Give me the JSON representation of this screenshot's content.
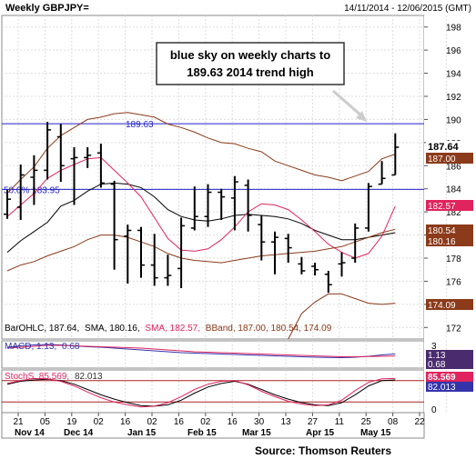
{
  "header": {
    "symbol": "Weekly GBPJPY=",
    "date_range": "14/11/2014 - 12/06/2015 (GMT)"
  },
  "annotation": {
    "line1": "blue sky on weekly charts to",
    "line2": "189.63 2014 trend high"
  },
  "footer": {
    "source": "Source: Thomson Reuters"
  },
  "chart_data": [
    {
      "type": "line",
      "title": "Weekly GBPJPY=",
      "ylim": [
        171,
        199
      ],
      "y_ticks": [
        172,
        174,
        176,
        178,
        180,
        182,
        184,
        186,
        188,
        190,
        192,
        194,
        196,
        198
      ],
      "x_tick_labels": [
        "21",
        "05",
        "19",
        "02",
        "16",
        "02",
        "16",
        "02",
        "16",
        "30",
        "13",
        "27",
        "11",
        "25",
        "08",
        "22",
        "05"
      ],
      "x_month_labels": [
        "Nov 14",
        "Dec 14",
        "Jan 15",
        "Feb 15",
        "Mar 15",
        "Apr 15",
        "May 15"
      ],
      "legend_text": [
        "BarOHLC, 187.64,",
        "SMA, 180.16,",
        "SMA, 182.57,",
        "BBand, 187.00, 180.54, 174.09"
      ],
      "hlines": [
        {
          "label": "189.63",
          "value": 189.63,
          "color": "#2222cc"
        },
        {
          "label": "50.0% 183.95",
          "value": 183.95,
          "color": "#2222cc"
        }
      ],
      "price_labels": [
        {
          "text": "187.64",
          "color": "#000000"
        },
        {
          "text": "187.00",
          "color": "#8b3a1a"
        },
        {
          "text": "182.57",
          "color": "#e0245e"
        },
        {
          "text": "180.54",
          "color": "#8b3a1a"
        },
        {
          "text": "180.16",
          "color": "#8b3a1a"
        },
        {
          "text": "174.09",
          "color": "#8b3a1a"
        }
      ],
      "ohlc": [
        {
          "o": 181.8,
          "h": 183.9,
          "l": 181.4,
          "c": 183.1
        },
        {
          "o": 182.4,
          "h": 186.1,
          "l": 181.3,
          "c": 185.2
        },
        {
          "o": 185.0,
          "h": 186.9,
          "l": 182.6,
          "c": 185.6
        },
        {
          "o": 185.6,
          "h": 189.8,
          "l": 184.8,
          "c": 189.1
        },
        {
          "o": 188.5,
          "h": 189.6,
          "l": 184.6,
          "c": 186.0
        },
        {
          "o": 186.6,
          "h": 187.6,
          "l": 182.6,
          "c": 186.7
        },
        {
          "o": 186.7,
          "h": 187.6,
          "l": 185.8,
          "c": 186.9
        },
        {
          "o": 187.1,
          "h": 187.9,
          "l": 184.1,
          "c": 184.5
        },
        {
          "o": 184.4,
          "h": 184.7,
          "l": 177.0,
          "c": 179.6
        },
        {
          "o": 179.9,
          "h": 180.9,
          "l": 175.8,
          "c": 180.4
        },
        {
          "o": 180.4,
          "h": 180.7,
          "l": 176.3,
          "c": 177.4
        },
        {
          "o": 177.4,
          "h": 180.1,
          "l": 175.6,
          "c": 176.3
        },
        {
          "o": 176.3,
          "h": 178.3,
          "l": 175.6,
          "c": 176.5
        },
        {
          "o": 177.1,
          "h": 181.5,
          "l": 175.4,
          "c": 180.8
        },
        {
          "o": 180.6,
          "h": 184.2,
          "l": 180.4,
          "c": 181.6
        },
        {
          "o": 181.6,
          "h": 184.4,
          "l": 180.7,
          "c": 183.7
        },
        {
          "o": 183.7,
          "h": 184.0,
          "l": 181.3,
          "c": 183.3
        },
        {
          "o": 183.2,
          "h": 185.1,
          "l": 180.4,
          "c": 184.6
        },
        {
          "o": 184.3,
          "h": 184.8,
          "l": 180.3,
          "c": 181.7
        },
        {
          "o": 180.9,
          "h": 181.7,
          "l": 177.8,
          "c": 179.4
        },
        {
          "o": 179.4,
          "h": 180.3,
          "l": 176.6,
          "c": 179.8
        },
        {
          "o": 179.7,
          "h": 180.1,
          "l": 177.6,
          "c": 178.9
        },
        {
          "o": 177.5,
          "h": 178.1,
          "l": 176.6,
          "c": 176.9
        },
        {
          "o": 177.3,
          "h": 177.6,
          "l": 176.5,
          "c": 177.0
        },
        {
          "o": 176.6,
          "h": 176.9,
          "l": 175.0,
          "c": 175.7
        },
        {
          "o": 177.5,
          "h": 178.5,
          "l": 176.4,
          "c": 177.6
        },
        {
          "o": 178.0,
          "h": 181.0,
          "l": 177.6,
          "c": 180.6
        },
        {
          "o": 180.6,
          "h": 184.5,
          "l": 180.3,
          "c": 184.2
        },
        {
          "o": 184.4,
          "h": 186.4,
          "l": 184.4,
          "c": 184.9
        },
        {
          "o": 185.2,
          "h": 188.8,
          "l": 185.2,
          "c": 187.6
        }
      ],
      "series": [
        {
          "color": "#000000",
          "values": [
            178.5,
            179.5,
            180.3,
            181.1,
            182.5,
            183.0,
            183.8,
            184.4,
            184.5,
            184.4,
            184.1,
            183.3,
            182.2,
            181.6,
            181.3,
            181.2,
            181.4,
            181.7,
            181.8,
            181.7,
            181.6,
            181.4,
            181.0,
            180.4,
            180.0,
            179.6,
            179.6,
            179.8,
            180.0,
            180.2
          ]
        },
        {
          "color": "#e0245e",
          "values": [
            181.6,
            182.6,
            183.6,
            184.9,
            185.6,
            186.1,
            186.6,
            186.7,
            185.6,
            184.5,
            183.3,
            181.5,
            179.7,
            178.7,
            178.6,
            178.8,
            179.6,
            180.7,
            182.0,
            182.7,
            182.6,
            182.2,
            181.3,
            180.3,
            179.2,
            178.5,
            178.0,
            178.4,
            179.9,
            182.5
          ]
        },
        {
          "color": "#8b3a1a",
          "values": [
            183.6,
            184.8,
            185.9,
            187.5,
            188.6,
            189.3,
            190.0,
            190.2,
            190.5,
            190.6,
            190.4,
            190.2,
            189.6,
            189.3,
            188.9,
            188.4,
            188.0,
            187.9,
            187.5,
            187.2,
            186.4,
            186.0,
            185.6,
            185.2,
            185.0,
            184.7,
            185.1,
            185.5,
            186.6,
            187.0
          ]
        },
        {
          "color": "#8b3a1a",
          "values": [
            176.9,
            177.4,
            177.7,
            178.2,
            178.6,
            179.0,
            179.6,
            180.0,
            180.0,
            179.8,
            179.4,
            179.0,
            178.4,
            178.0,
            177.8,
            177.7,
            177.6,
            177.8,
            178.0,
            178.2,
            178.3,
            178.4,
            178.5,
            178.6,
            178.8,
            179.0,
            179.4,
            179.8,
            180.2,
            180.5
          ]
        },
        {
          "color": "#8b3a1a",
          "values": [
            170.0,
            170.0,
            170.0,
            170.0,
            170.0,
            170.0,
            170.0,
            170.0,
            170.0,
            170.0,
            170.0,
            170.0,
            170.0,
            170.0,
            170.0,
            170.0,
            170.0,
            170.0,
            170.0,
            170.0,
            170.0,
            171.0,
            173.2,
            174.2,
            174.9,
            174.9,
            174.5,
            174.1,
            174.0,
            174.1
          ]
        }
      ]
    },
    {
      "type": "line",
      "title": "MACD",
      "legend_text": [
        "MACD, 1.13,",
        "0.68"
      ],
      "y_ticks": [
        3,
        0
      ],
      "ylim": [
        -2,
        4
      ],
      "price_labels": [
        {
          "text": "1.13",
          "color": "#000000"
        },
        {
          "text": "0.68",
          "color": "#000000"
        }
      ],
      "series": [
        {
          "color": "#3333aa",
          "values": [
            2.6,
            2.9,
            3.1,
            3.2,
            3.1,
            2.9,
            2.7,
            2.6,
            2.4,
            2.2,
            2.0,
            1.8,
            1.6,
            1.4,
            1.3,
            1.2,
            1.1,
            1.0,
            0.9,
            0.8,
            0.7,
            0.6,
            0.5,
            0.4,
            0.35,
            0.3,
            0.4,
            0.6,
            0.9,
            1.13
          ]
        },
        {
          "color": "#e0245e",
          "values": [
            2.4,
            2.6,
            2.8,
            3.0,
            3.0,
            2.9,
            2.8,
            2.7,
            2.6,
            2.5,
            2.4,
            2.2,
            2.0,
            1.8,
            1.6,
            1.5,
            1.4,
            1.3,
            1.2,
            1.1,
            1.0,
            0.9,
            0.8,
            0.7,
            0.6,
            0.5,
            0.5,
            0.55,
            0.6,
            0.68
          ]
        }
      ]
    },
    {
      "type": "line",
      "title": "StochS",
      "legend_text": [
        "StochS, 85.569,",
        "82.013"
      ],
      "y_ticks": [
        0
      ],
      "ylim": [
        -10,
        110
      ],
      "price_labels": [
        {
          "text": "85.569",
          "color": "#e0245e"
        },
        {
          "text": "82.013",
          "color": "#3333aa"
        }
      ],
      "hlines": [
        80,
        20
      ],
      "series": [
        {
          "color": "#000000",
          "values": [
            70,
            78,
            82,
            84,
            80,
            70,
            55,
            40,
            28,
            18,
            10,
            8,
            12,
            25,
            45,
            62,
            72,
            78,
            70,
            55,
            40,
            28,
            18,
            12,
            10,
            18,
            40,
            65,
            80,
            82
          ]
        },
        {
          "color": "#e0245e",
          "values": [
            72,
            80,
            86,
            85,
            78,
            65,
            48,
            32,
            20,
            12,
            6,
            8,
            18,
            35,
            55,
            70,
            78,
            80,
            68,
            50,
            35,
            22,
            14,
            10,
            12,
            25,
            52,
            75,
            85,
            86
          ]
        }
      ]
    }
  ]
}
